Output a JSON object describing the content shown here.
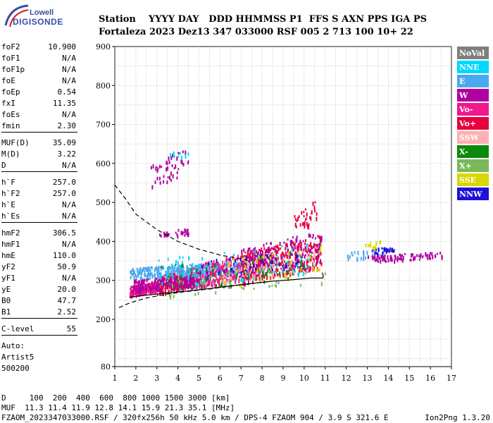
{
  "logo": {
    "line1": "Lowell",
    "line2": "DIGISONDE"
  },
  "header": {
    "labels": "Station    YYYY DAY   DDD HHMMSS P1  FFS S AXN PPS IGA PS",
    "values": "Fortaleza 2023 Dez13 347 033000 RSF 005 2 713 100 10+ 22"
  },
  "params": [
    {
      "k": "foF2",
      "v": "10.900"
    },
    {
      "k": "foF1",
      "v": "N/A"
    },
    {
      "k": "foF1p",
      "v": "N/A"
    },
    {
      "k": "foE",
      "v": "N/A"
    },
    {
      "k": "foEp",
      "v": "0.54"
    },
    {
      "k": "fxI",
      "v": "11.35"
    },
    {
      "k": "foEs",
      "v": "N/A"
    },
    {
      "k": "fmin",
      "v": "2.30"
    },
    {
      "k": "MUF(D)",
      "v": "35.09"
    },
    {
      "k": "M(D)",
      "v": "3.22"
    },
    {
      "k": "D",
      "v": "N/A"
    },
    {
      "k": "h`F",
      "v": "257.0"
    },
    {
      "k": "h`F2",
      "v": "257.0"
    },
    {
      "k": "h`E",
      "v": "N/A"
    },
    {
      "k": "h`Es",
      "v": "N/A"
    },
    {
      "k": "hmF2",
      "v": "306.5"
    },
    {
      "k": "hmF1",
      "v": "N/A"
    },
    {
      "k": "hmE",
      "v": "110.0"
    },
    {
      "k": "yF2",
      "v": "50.9"
    },
    {
      "k": "yF1",
      "v": "N/A"
    },
    {
      "k": "yE",
      "v": "20.0"
    },
    {
      "k": "B0",
      "v": "47.7"
    },
    {
      "k": "B1",
      "v": "2.52"
    },
    {
      "k": "C-level",
      "v": "55"
    }
  ],
  "auto": {
    "l1": "Auto:",
    "l2": "Artist5",
    "l3": "500200"
  },
  "footer": {
    "d_label": "D",
    "d_values": "100  200  400  600  800 1000 1500 3000 [km]",
    "muf_label": "MUF",
    "muf_values": "11.3 11.4 11.9 12.8 14.1 15.9 21.3 35.1 [MHz]",
    "file": "FZAOM_2023347033000.RSF / 320fx256h 50 kHz 5.0 km / DPS-4 FZAOM 904 / 3.9 S 321.6 E",
    "credit": "Ion2Png 1.3.20"
  },
  "legend": [
    {
      "name": "NoVal",
      "color": "#7f7f7f"
    },
    {
      "name": "NNE",
      "color": "#00d8ff"
    },
    {
      "name": "E",
      "color": "#4aa8f0"
    },
    {
      "name": "W",
      "color": "#b000a0"
    },
    {
      "name": "Vo-",
      "color": "#f0188c"
    },
    {
      "name": "Vo+",
      "color": "#e8003c"
    },
    {
      "name": "SSW",
      "color": "#ffb0b0"
    },
    {
      "name": "X-",
      "color": "#0a8a0a"
    },
    {
      "name": "X+",
      "color": "#7ab85a"
    },
    {
      "name": "SSE",
      "color": "#d8d800"
    },
    {
      "name": "NNW",
      "color": "#2010d8"
    }
  ],
  "chart_data": {
    "type": "scatter",
    "xlim": [
      1,
      17
    ],
    "ylim": [
      80,
      900
    ],
    "xticks": [
      "1",
      "2",
      "3",
      "4",
      "5",
      "6",
      "7",
      "8",
      "9",
      "10",
      "11",
      "12",
      "13",
      "14",
      "15",
      "16",
      "17"
    ],
    "yticks": [
      "80",
      "200",
      "300",
      "400",
      "500",
      "600",
      "700",
      "800",
      "900"
    ],
    "grid": true,
    "legend_position": "right",
    "profile_line": {
      "x": [
        1.7,
        2.5,
        3.5,
        4.5,
        5.5,
        6.5,
        7.5,
        8.5,
        9.5,
        10.3,
        10.8,
        10.9
      ],
      "y": [
        257,
        262,
        268,
        273,
        279,
        286,
        292,
        298,
        302,
        306,
        306,
        306
      ]
    },
    "cusp_line": {
      "x": [
        10.9,
        10.9,
        10.85
      ],
      "y": [
        306,
        314,
        320
      ]
    },
    "muf_dashed": {
      "x": [
        1,
        1.5,
        2,
        3,
        4,
        5,
        6,
        7,
        7.5
      ],
      "y": [
        545,
        510,
        470,
        430,
        400,
        380,
        365,
        355,
        350
      ]
    },
    "lower_dashed": {
      "x": [
        1.2,
        1.7,
        2.5,
        3.5,
        4.5,
        5.5,
        6.5,
        7.5,
        8.5
      ],
      "y": [
        230,
        242,
        255,
        265,
        272,
        278,
        285,
        292,
        298
      ]
    },
    "clusters": [
      {
        "x": [
          1.7,
          3.0
        ],
        "y": [
          262,
          300
        ],
        "color": "#f0188c",
        "n": 260
      },
      {
        "x": [
          3.0,
          5.0
        ],
        "y": [
          265,
          340
        ],
        "color": "#e8003c",
        "n": 260
      },
      {
        "x": [
          1.8,
          5.5
        ],
        "y": [
          272,
          320
        ],
        "color": "#b000a0",
        "n": 260
      },
      {
        "x": [
          1.7,
          7.0
        ],
        "y": [
          305,
          350
        ],
        "color": "#4aa8f0",
        "n": 330
      },
      {
        "x": [
          5.0,
          8.0
        ],
        "y": [
          280,
          380
        ],
        "color": "#f0188c",
        "n": 280
      },
      {
        "x": [
          7.0,
          10.8
        ],
        "y": [
          290,
          420
        ],
        "color": "#e8003c",
        "n": 300
      },
      {
        "x": [
          7.0,
          10.8
        ],
        "y": [
          300,
          430
        ],
        "color": "#b000a0",
        "n": 180
      },
      {
        "x": [
          5.0,
          10.0
        ],
        "y": [
          300,
          380
        ],
        "color": "#2010d8",
        "n": 90
      },
      {
        "x": [
          3.0,
          10.5
        ],
        "y": [
          280,
          400
        ],
        "color": "#00d8ff",
        "n": 80
      },
      {
        "x": [
          3.0,
          10.5
        ],
        "y": [
          270,
          380
        ],
        "color": "#0a8a0a",
        "n": 70
      },
      {
        "x": [
          6.0,
          10.5
        ],
        "y": [
          290,
          390
        ],
        "color": "#ffb0b0",
        "n": 80
      },
      {
        "x": [
          6.0,
          11.0
        ],
        "y": [
          280,
          400
        ],
        "color": "#d8d800",
        "n": 50
      },
      {
        "x": [
          3.5,
          11.0
        ],
        "y": [
          260,
          350
        ],
        "color": "#7ab85a",
        "n": 60
      },
      {
        "x": [
          9.5,
          10.6
        ],
        "y": [
          420,
          510
        ],
        "color": "#e8003c",
        "n": 35
      },
      {
        "x": [
          12.0,
          13.8
        ],
        "y": [
          355,
          385
        ],
        "color": "#4aa8f0",
        "n": 25
      },
      {
        "x": [
          13.0,
          16.6
        ],
        "y": [
          350,
          375
        ],
        "color": "#b000a0",
        "n": 90
      },
      {
        "x": [
          13.2,
          14.5
        ],
        "y": [
          370,
          390
        ],
        "color": "#2010d8",
        "n": 25
      },
      {
        "x": [
          12.8,
          13.6
        ],
        "y": [
          380,
          405
        ],
        "color": "#d8d800",
        "n": 12
      },
      {
        "x": [
          2.7,
          4.5
        ],
        "y": [
          540,
          640
        ],
        "color": "#b000a0",
        "n": 45
      },
      {
        "x": [
          3.5,
          4.6
        ],
        "y": [
          610,
          640
        ],
        "color": "#00d8ff",
        "n": 8
      },
      {
        "x": [
          3.0,
          4.5
        ],
        "y": [
          410,
          435
        ],
        "color": "#b000a0",
        "n": 30
      }
    ]
  }
}
